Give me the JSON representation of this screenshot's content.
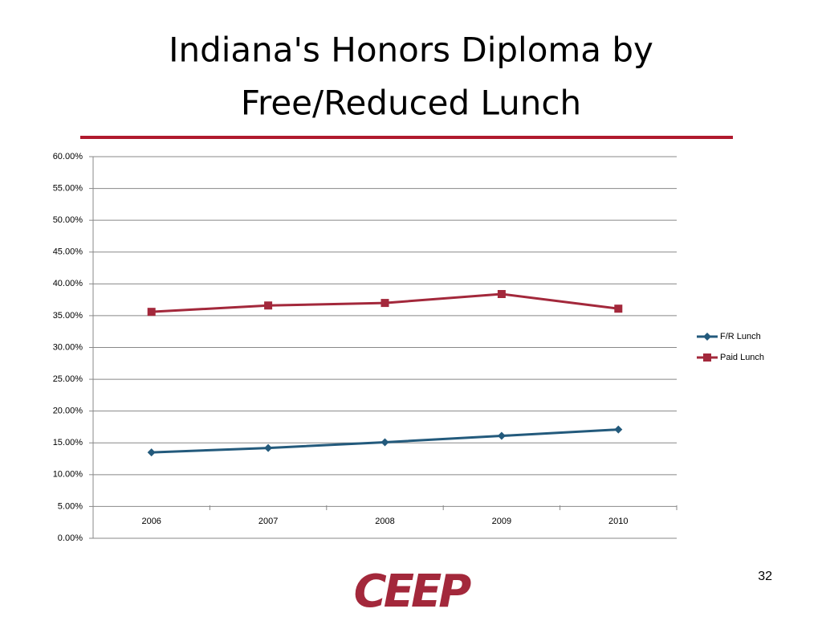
{
  "chart_data": {
    "type": "line",
    "title": [
      "Indiana's Honors Diploma by",
      "Free/Reduced Lunch"
    ],
    "categories": [
      "2006",
      "2007",
      "2008",
      "2009",
      "2010"
    ],
    "series": [
      {
        "name": "F/R Lunch",
        "color": "#235a7c",
        "marker": "diamond",
        "values": [
          13.5,
          14.2,
          15.1,
          16.1,
          17.1
        ]
      },
      {
        "name": "Paid Lunch",
        "color": "#a3283b",
        "marker": "square",
        "values": [
          35.6,
          36.6,
          37.0,
          38.4,
          36.1
        ]
      }
    ],
    "ylim": [
      0,
      60
    ],
    "yticks": [
      {
        "value": 0,
        "label": "0.00%"
      },
      {
        "value": 5,
        "label": "5.00%"
      },
      {
        "value": 10,
        "label": "10.00%"
      },
      {
        "value": 15,
        "label": "15.00%"
      },
      {
        "value": 20,
        "label": "20.00%"
      },
      {
        "value": 25,
        "label": "25.00%"
      },
      {
        "value": 30,
        "label": "30.00%"
      },
      {
        "value": 35,
        "label": "35.00%"
      },
      {
        "value": 40,
        "label": "40.00%"
      },
      {
        "value": 45,
        "label": "45.00%"
      },
      {
        "value": 50,
        "label": "50.00%"
      },
      {
        "value": 55,
        "label": "55.00%"
      },
      {
        "value": 60,
        "label": "60.00%"
      }
    ],
    "grid": true,
    "legend": "right"
  },
  "page_number": "32",
  "logo": "CEEP"
}
